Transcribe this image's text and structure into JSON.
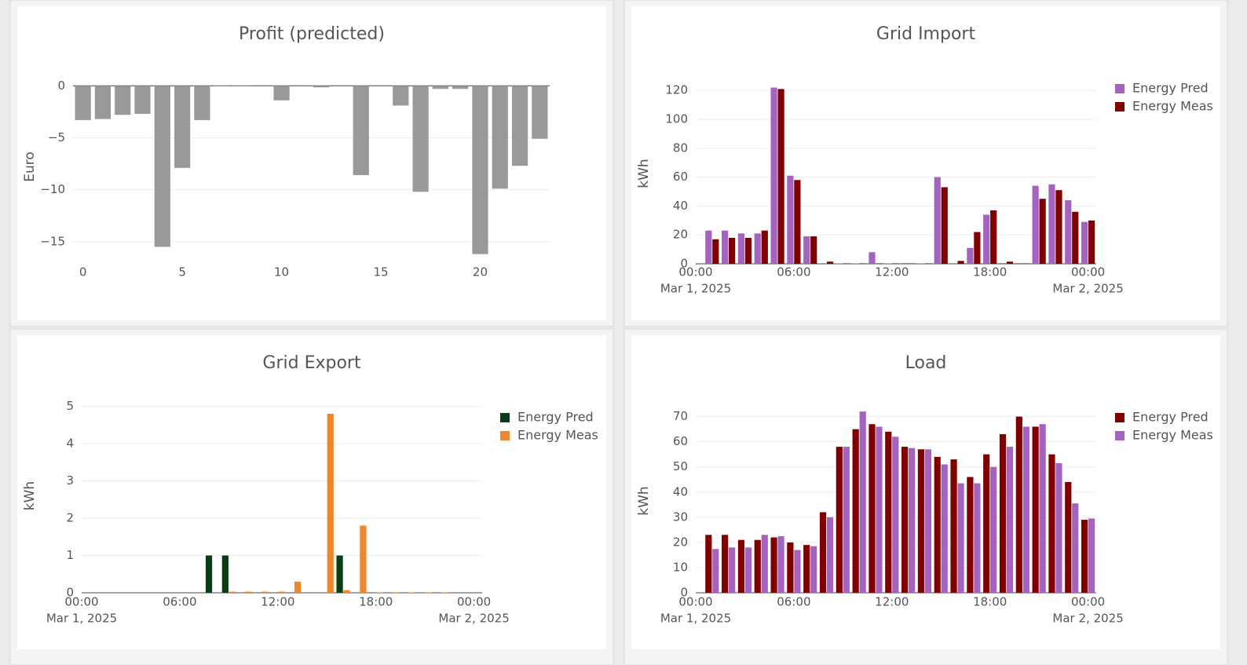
{
  "chart_data": [
    {
      "type": "bar",
      "title": "Profit (predicted)",
      "y_label": "Euro",
      "x": [
        0,
        1,
        2,
        3,
        4,
        5,
        6,
        7,
        8,
        9,
        10,
        11,
        12,
        13,
        14,
        15,
        16,
        17,
        18,
        19,
        20,
        21,
        22,
        23
      ],
      "values": [
        -3.3,
        -3.2,
        -2.8,
        -2.7,
        -15.5,
        -7.9,
        -3.3,
        0.05,
        0.05,
        0,
        -1.4,
        0,
        -0.15,
        0,
        -8.6,
        0,
        -1.9,
        -10.2,
        -0.3,
        -0.3,
        -16.2,
        -9.9,
        -7.7,
        -5.1
      ],
      "color": "#999999",
      "xlim": [
        -0.5,
        23.5
      ],
      "ylim": [
        -16.3,
        0.7
      ],
      "xticks": [
        0,
        5,
        10,
        15,
        20
      ],
      "yticks": [
        {
          "value": -15,
          "label": "−15"
        },
        {
          "value": -10,
          "label": "−10"
        },
        {
          "value": -5,
          "label": "−5"
        },
        0
      ],
      "grid": true
    },
    {
      "type": "bar",
      "title": "Grid Import",
      "y_label": "kWh",
      "x": [
        "2025-03-01 01:00",
        "2025-03-01 02:00",
        "2025-03-01 03:00",
        "2025-03-01 04:00",
        "2025-03-01 05:00",
        "2025-03-01 06:00",
        "2025-03-01 07:00",
        "2025-03-01 08:00",
        "2025-03-01 09:00",
        "2025-03-01 10:00",
        "2025-03-01 11:00",
        "2025-03-01 12:00",
        "2025-03-01 13:00",
        "2025-03-01 14:00",
        "2025-03-01 15:00",
        "2025-03-01 16:00",
        "2025-03-01 17:00",
        "2025-03-01 18:00",
        "2025-03-01 19:00",
        "2025-03-01 20:00",
        "2025-03-01 21:00",
        "2025-03-01 22:00",
        "2025-03-01 23:00",
        "2025-03-02 00:00"
      ],
      "series": [
        {
          "name": "Energy Pred",
          "color": "#a463bf",
          "values": [
            23,
            23,
            21,
            21,
            122,
            61,
            19,
            0,
            0.3,
            0.3,
            8,
            0.3,
            0.5,
            0.3,
            60,
            0,
            11,
            34,
            0.5,
            0.5,
            54,
            55,
            44,
            29
          ]
        },
        {
          "name": "Energy Meas",
          "color": "#800000",
          "values": [
            17,
            18,
            18,
            23,
            121,
            58,
            19,
            1.5,
            0.3,
            0.3,
            0.3,
            0.3,
            0.3,
            0.3,
            53,
            2,
            22,
            37,
            1.5,
            0.3,
            45,
            51,
            36,
            30
          ]
        }
      ],
      "xlim": [
        "2025-03-01 00:00",
        "2025-03-02 00:30"
      ],
      "ylim": [
        0,
        125
      ],
      "xticks": [
        {
          "value": "2025-03-01 00:00",
          "label": "00:00"
        },
        {
          "value": "2025-03-01 06:00",
          "label": "06:00"
        },
        {
          "value": "2025-03-01 12:00",
          "label": "12:00"
        },
        {
          "value": "2025-03-01 18:00",
          "label": "18:00"
        },
        {
          "value": "2025-03-02 00:00",
          "label": "00:00"
        }
      ],
      "xtick_dates": [
        "Mar 1, 2025",
        null,
        null,
        null,
        "Mar 2, 2025"
      ],
      "yticks": [
        0,
        20,
        40,
        60,
        80,
        100,
        120
      ],
      "grid": true,
      "legend": "top-right"
    },
    {
      "type": "bar",
      "title": "Grid Export",
      "y_label": "kWh",
      "x": [
        "2025-03-01 01:00",
        "2025-03-01 02:00",
        "2025-03-01 03:00",
        "2025-03-01 04:00",
        "2025-03-01 05:00",
        "2025-03-01 06:00",
        "2025-03-01 07:00",
        "2025-03-01 08:00",
        "2025-03-01 09:00",
        "2025-03-01 10:00",
        "2025-03-01 11:00",
        "2025-03-01 12:00",
        "2025-03-01 13:00",
        "2025-03-01 14:00",
        "2025-03-01 15:00",
        "2025-03-01 16:00",
        "2025-03-01 17:00",
        "2025-03-01 18:00",
        "2025-03-01 19:00",
        "2025-03-01 20:00",
        "2025-03-01 21:00",
        "2025-03-01 22:00",
        "2025-03-01 23:00",
        "2025-03-02 00:00"
      ],
      "series": [
        {
          "name": "Energy Pred",
          "color": "#0b3d14",
          "values": [
            0,
            0,
            0,
            0,
            0,
            0,
            0,
            1,
            1,
            0,
            0,
            0,
            0,
            0,
            0,
            1,
            0,
            0,
            0,
            0,
            0,
            0,
            0,
            0
          ]
        },
        {
          "name": "Energy Meas",
          "color": "#f0862b",
          "values": [
            0,
            0,
            0,
            0,
            0,
            0,
            0,
            0,
            0.03,
            0.03,
            0.03,
            0.03,
            0.3,
            0,
            4.8,
            0.07,
            1.8,
            0.01,
            0.01,
            0.01,
            0.01,
            0.01,
            0,
            0
          ]
        }
      ],
      "xlim": [
        "2025-03-01 00:00",
        "2025-03-02 00:30"
      ],
      "ylim": [
        0,
        5.2
      ],
      "xticks": [
        {
          "value": "2025-03-01 00:00",
          "label": "00:00"
        },
        {
          "value": "2025-03-01 06:00",
          "label": "06:00"
        },
        {
          "value": "2025-03-01 12:00",
          "label": "12:00"
        },
        {
          "value": "2025-03-01 18:00",
          "label": "18:00"
        },
        {
          "value": "2025-03-02 00:00",
          "label": "00:00"
        }
      ],
      "xtick_dates": [
        "Mar 1, 2025",
        null,
        null,
        null,
        "Mar 2, 2025"
      ],
      "yticks": [
        0,
        1,
        2,
        3,
        4,
        5
      ],
      "grid": true,
      "legend": "top-right"
    },
    {
      "type": "bar",
      "title": "Load",
      "y_label": "kWh",
      "x": [
        "2025-03-01 01:00",
        "2025-03-01 02:00",
        "2025-03-01 03:00",
        "2025-03-01 04:00",
        "2025-03-01 05:00",
        "2025-03-01 06:00",
        "2025-03-01 07:00",
        "2025-03-01 08:00",
        "2025-03-01 09:00",
        "2025-03-01 10:00",
        "2025-03-01 11:00",
        "2025-03-01 12:00",
        "2025-03-01 13:00",
        "2025-03-01 14:00",
        "2025-03-01 15:00",
        "2025-03-01 16:00",
        "2025-03-01 17:00",
        "2025-03-01 18:00",
        "2025-03-01 19:00",
        "2025-03-01 20:00",
        "2025-03-01 21:00",
        "2025-03-01 22:00",
        "2025-03-01 23:00",
        "2025-03-02 00:00"
      ],
      "series": [
        {
          "name": "Energy Pred",
          "color": "#800000",
          "values": [
            23,
            23,
            21,
            21,
            22,
            20,
            19,
            32,
            58,
            65,
            67,
            64,
            58,
            57,
            54,
            53,
            46,
            55,
            63,
            70,
            66,
            55,
            44,
            29
          ]
        },
        {
          "name": "Energy Meas",
          "color": "#a463bf",
          "values": [
            17.4,
            18,
            18,
            23,
            22.5,
            17,
            18.5,
            30,
            58,
            72,
            66,
            62,
            57.5,
            57,
            51,
            43.5,
            43.5,
            50,
            58,
            66,
            67,
            51.5,
            35.5,
            29.5
          ]
        }
      ],
      "xlim": [
        "2025-03-01 00:00",
        "2025-03-02 00:30"
      ],
      "ylim": [
        0,
        73
      ],
      "xticks": [
        {
          "value": "2025-03-01 00:00",
          "label": "00:00"
        },
        {
          "value": "2025-03-01 06:00",
          "label": "06:00"
        },
        {
          "value": "2025-03-01 12:00",
          "label": "12:00"
        },
        {
          "value": "2025-03-01 18:00",
          "label": "18:00"
        },
        {
          "value": "2025-03-02 00:00",
          "label": "00:00"
        }
      ],
      "xtick_dates": [
        "Mar 1, 2025",
        null,
        null,
        null,
        "Mar 2, 2025"
      ],
      "yticks": [
        0,
        10,
        20,
        30,
        40,
        50,
        60,
        70
      ],
      "grid": true,
      "legend": "top-right"
    }
  ]
}
